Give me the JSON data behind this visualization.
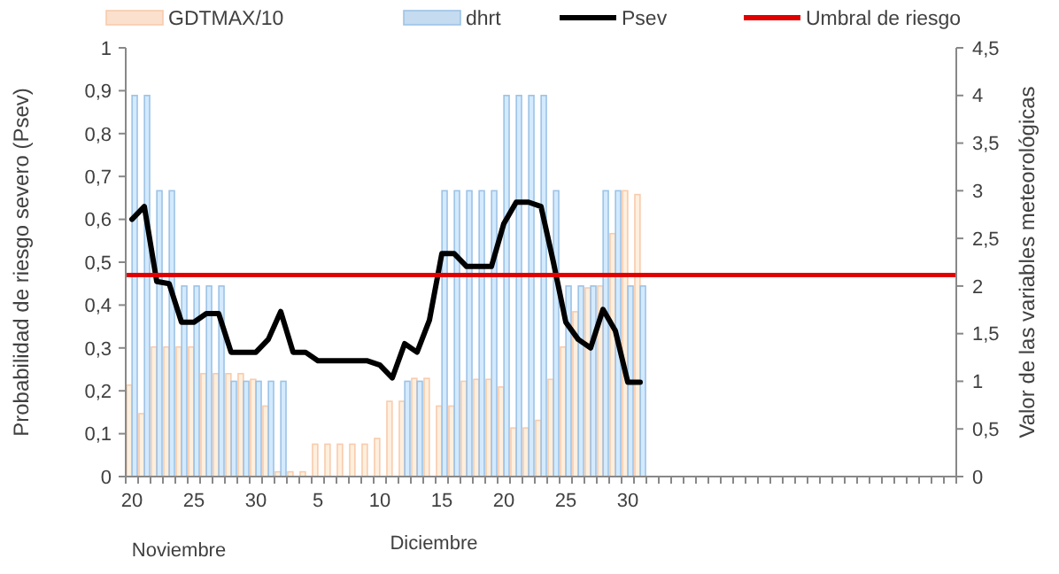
{
  "chart_data": {
    "type": "bar",
    "ylabel": "Probabilidad de riesgo severo (Psev)",
    "y2label": "Valor de las variables meteorológicas",
    "categories": [
      "20",
      null,
      null,
      null,
      null,
      "25",
      null,
      null,
      null,
      null,
      "30",
      null,
      null,
      null,
      null,
      "5",
      null,
      null,
      null,
      null,
      "10",
      null,
      null,
      null,
      null,
      "15",
      null,
      null,
      null,
      null,
      "20",
      null,
      null,
      null,
      null,
      "25",
      null,
      null,
      null,
      null,
      "30",
      null,
      null,
      null,
      null,
      null,
      null,
      null,
      null,
      null,
      null,
      null,
      null,
      null,
      null,
      null,
      null,
      null,
      null,
      null,
      null,
      null,
      null,
      null,
      null,
      null,
      null
    ],
    "series": [
      {
        "name": "GDTMAX/10",
        "axis": "y2",
        "color": "#f8cbad",
        "values": [
          0.96,
          0.66,
          1.36,
          1.36,
          1.36,
          1.36,
          1.08,
          1.08,
          1.08,
          1.08,
          1.02,
          0.74,
          0.05,
          0.05,
          0.05,
          0.34,
          0.34,
          0.34,
          0.34,
          0.34,
          0.4,
          0.79,
          0.79,
          1.03,
          1.03,
          0.74,
          0.74,
          1.0,
          1.02,
          1.02,
          0.94,
          0.51,
          0.51,
          0.59,
          1.02,
          1.36,
          1.73,
          1.98,
          2.0,
          2.55,
          3.0,
          2.96,
          null,
          null,
          null,
          null,
          null,
          null,
          null,
          null,
          null,
          null,
          null,
          null,
          null,
          null,
          null,
          null,
          null,
          null,
          null,
          null,
          null,
          null,
          null,
          null,
          null
        ]
      },
      {
        "name": "dhrt",
        "axis": "y2",
        "color": "#9dc3e6",
        "values": [
          4,
          4,
          3,
          3,
          2,
          2,
          2,
          2,
          1,
          1,
          1,
          1,
          1,
          0,
          0,
          0,
          0,
          0,
          0,
          0,
          0,
          0,
          1,
          1,
          0,
          3,
          3,
          3,
          3,
          3,
          4,
          4,
          4,
          4,
          3,
          2,
          2,
          2,
          3,
          3,
          2,
          2,
          null,
          null,
          null,
          null,
          null,
          null,
          null,
          null,
          null,
          null,
          null,
          null,
          null,
          null,
          null,
          null,
          null,
          null,
          null,
          null,
          null,
          null,
          null,
          null,
          null
        ]
      },
      {
        "name": "Psev",
        "type": "line",
        "color": "#000000",
        "values": [
          0.6,
          0.63,
          0.455,
          0.45,
          0.36,
          0.36,
          0.38,
          0.38,
          0.29,
          0.29,
          0.29,
          0.32,
          0.385,
          0.29,
          0.29,
          0.27,
          0.27,
          0.27,
          0.27,
          0.27,
          0.26,
          0.23,
          0.31,
          0.29,
          0.365,
          0.52,
          0.52,
          0.49,
          0.49,
          0.49,
          0.59,
          0.64,
          0.64,
          0.63,
          0.5,
          0.36,
          0.32,
          0.3,
          0.39,
          0.34,
          0.22,
          0.22,
          null,
          null,
          null,
          null,
          null,
          null,
          null,
          null,
          null,
          null,
          null,
          null,
          null,
          null,
          null,
          null,
          null,
          null,
          null,
          null,
          null,
          null,
          null,
          null,
          null
        ]
      }
    ],
    "ref_lines": [
      {
        "axis": "y",
        "value": 0.47,
        "label": "Umbral de riesgo",
        "color": "#e00000"
      }
    ],
    "ylim": [
      0,
      1
    ],
    "yticks": [
      0,
      {
        "value": 0.1,
        "label": "0,1"
      },
      {
        "value": 0.2,
        "label": "0,2"
      },
      {
        "value": 0.3,
        "label": "0,3"
      },
      {
        "value": 0.4,
        "label": "0,4"
      },
      {
        "value": 0.5,
        "label": "0,5"
      },
      {
        "value": 0.6,
        "label": "0,6"
      },
      {
        "value": 0.7,
        "label": "0,7"
      },
      {
        "value": 0.8,
        "label": "0,8"
      },
      {
        "value": 0.9,
        "label": "0,9"
      },
      1
    ],
    "y2lim": [
      0,
      4.5
    ],
    "y2ticks": [
      0,
      {
        "value": 0.5,
        "label": "0,5"
      },
      1,
      {
        "value": 1.5,
        "label": "1,5"
      },
      2,
      {
        "value": 2.5,
        "label": "2,5"
      },
      3,
      {
        "value": 3.5,
        "label": "3,5"
      },
      4,
      {
        "value": 4.5,
        "label": "4,5"
      }
    ],
    "annotations": [
      "Noviembre",
      "Diciembre"
    ],
    "legend": "top"
  }
}
